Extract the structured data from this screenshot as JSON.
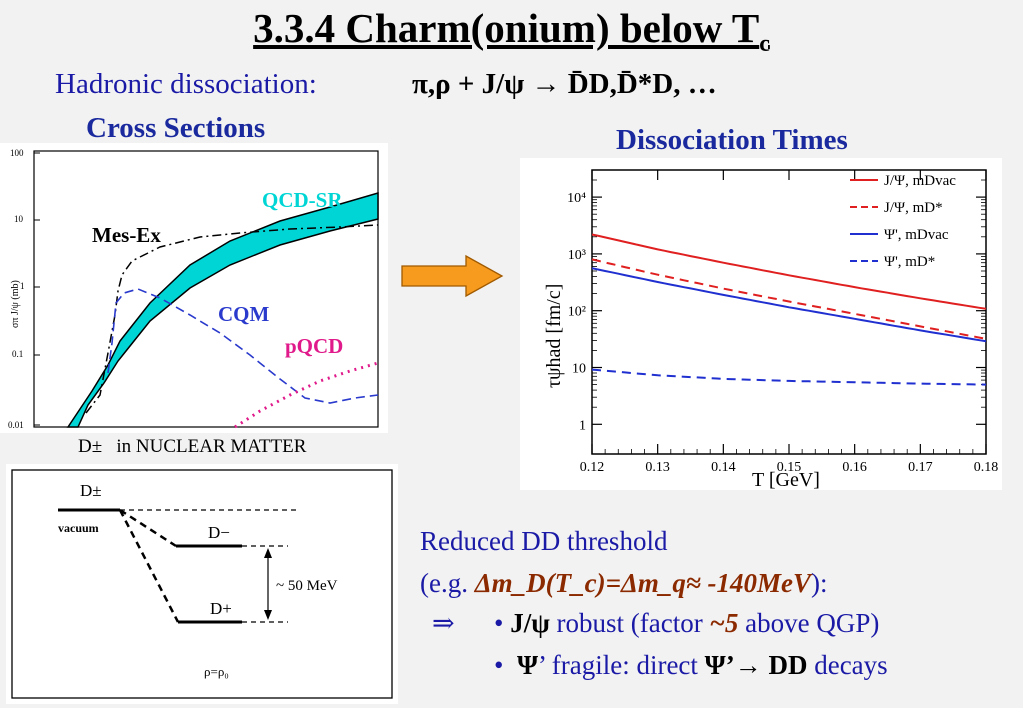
{
  "title": {
    "main": "3.3.4 Charm(onium) below T",
    "sub": "c"
  },
  "hadronic": {
    "label": "Hadronic dissociation:",
    "reaction": "π,ρ + J/ψ → D̄D,D̄*D, …"
  },
  "cross_sections": {
    "heading": "Cross Sections",
    "ylabel": "σπ J/ψ (mb)",
    "yticks": [
      "100",
      "10",
      "1",
      "0.1",
      "0.01"
    ],
    "labels": {
      "qcdsr": "QCD-SR",
      "mesex": "Mes-Ex",
      "cqm": "CQM",
      "pqcd": "pQCD"
    },
    "colors": {
      "qcdsr": "#00d5d5",
      "cqm": "#2a3acc",
      "pqcd": "#e01a8a"
    }
  },
  "nuclear": {
    "title_sym": "D±",
    "title_text": "in NUCLEAR MATTER",
    "d_pm": "D±",
    "vacuum": "vacuum",
    "d_minus": "D−",
    "d_plus": "D+",
    "splitting": "~ 50 MeV",
    "density": "ρ=ρ₀"
  },
  "arrow_color": "#f79b1e",
  "dissociation": {
    "heading": "Dissociation Times",
    "xlabel": "T [GeV]",
    "ylabel": "τψhad [fm/c]",
    "xticks": [
      "0.12",
      "0.13",
      "0.14",
      "0.15",
      "0.16",
      "0.17",
      "0.18"
    ],
    "yticks": [
      "1",
      "10",
      "10²",
      "10³",
      "10⁴"
    ],
    "legend": [
      "J/Ψ, mDvac",
      "J/Ψ, mD*",
      "Ψ', mDvac",
      "Ψ', mD*"
    ]
  },
  "chart_data": {
    "type": "line",
    "title": "Dissociation Times",
    "xlabel": "T [GeV]",
    "ylabel": "τψhad [fm/c]",
    "xlim": [
      0.12,
      0.18
    ],
    "ylim": [
      0.3,
      30000
    ],
    "yscale": "log",
    "legend_position": "top-right",
    "x": [
      0.12,
      0.13,
      0.14,
      0.15,
      0.16,
      0.17,
      0.18
    ],
    "series": [
      {
        "name": "J/Ψ, mDvac",
        "color": "#e02020",
        "dash": false,
        "values": [
          2200,
          1200,
          700,
          420,
          260,
          165,
          108
        ]
      },
      {
        "name": "J/Ψ, mD*",
        "color": "#e02020",
        "dash": true,
        "values": [
          800,
          430,
          245,
          145,
          88,
          53,
          32
        ]
      },
      {
        "name": "Ψ', mDvac",
        "color": "#2030d0",
        "dash": false,
        "values": [
          560,
          320,
          190,
          115,
          72,
          45,
          29
        ]
      },
      {
        "name": "Ψ', mD*",
        "color": "#2030d0",
        "dash": true,
        "values": [
          9.2,
          7.3,
          6.3,
          5.8,
          5.5,
          5.2,
          5.0
        ]
      }
    ]
  },
  "bottom": {
    "line1": "Reduced DD threshold",
    "line2_open": "(e.g. ",
    "line2_formula": "Δm_D(T_c)=Δm_q≈ -140MeV",
    "line2_close": "):",
    "implies": "⇒",
    "b1_bold": "J/ψ",
    "b1_text1": " robust (factor ",
    "b1_factor": "~5",
    "b1_text2": " above QGP)",
    "b2_bold": "Ψ",
    "b2_text1": "’ fragile:  direct ",
    "b2_bold2": "Ψ’→ DD",
    "b2_text2": " decays"
  }
}
